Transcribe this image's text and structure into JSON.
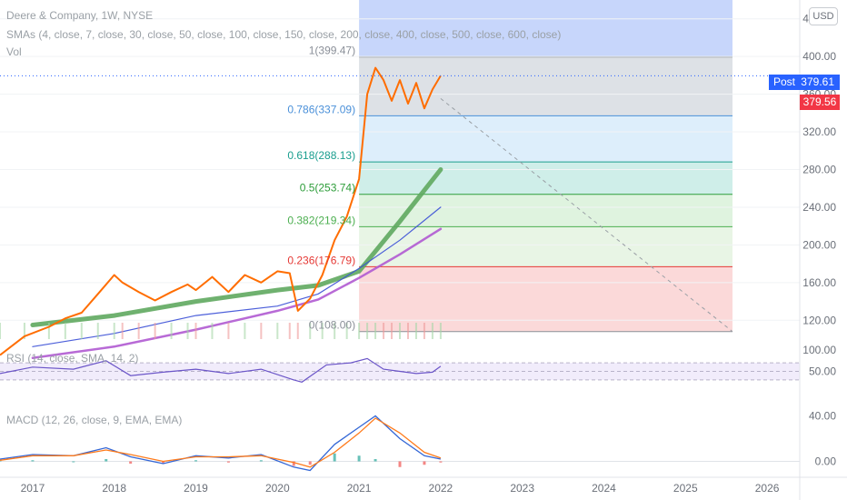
{
  "header": {
    "symbol_title": "Deere & Company, 1W, NYSE",
    "smas_label": "SMAs (4, close, 7, close, 30, close, 50, close, 100, close, 150, close, 200, close, 400, close, 500, close, 600, close)",
    "vol_label": "Vol",
    "currency_button": "USD"
  },
  "price_tags": {
    "post_label": "Post",
    "post_value": "379.61",
    "last_value": "379.56"
  },
  "rsi_label": "RSI (14, close, SMA, 14, 2)",
  "macd_label": "MACD (12, 26, close, 9, EMA, EMA)",
  "colors": {
    "fib_zone_upper": "#dde1e6",
    "fib_zone_0786": "#ddeefb",
    "fib_zone_0618": "#cfeee9",
    "fib_zone_05": "#dff3df",
    "fib_zone_0382": "#e8f5e5",
    "fib_zone_0236": "#fbd9d9",
    "highlight_band": "#c7d6fb",
    "price_line": "#ff6d00",
    "sma_green": "#5fa85f",
    "sma_purple": "#b05ad1",
    "sma_blue": "#3a4fd6",
    "rsi_line": "#6b55c8",
    "rsi_signal": "#e3c240",
    "macd_line": "#3467d6",
    "macd_signal": "#ff7b1c"
  },
  "chart_data": {
    "type": "line",
    "title": "Deere & Company, 1W, NYSE",
    "x_ticks": [
      "2017",
      "2018",
      "2019",
      "2020",
      "2021",
      "2022",
      "2023",
      "2024",
      "2025",
      "2026"
    ],
    "y_ticks": [
      "440.00",
      "400.00",
      "360.00",
      "320.00",
      "280.00",
      "240.00",
      "200.00",
      "160.00",
      "120.00"
    ],
    "ylim": [
      100,
      460
    ],
    "price_series": {
      "x": [
        2016.6,
        2016.9,
        2017.2,
        2017.4,
        2017.6,
        2017.8,
        2018.0,
        2018.1,
        2018.3,
        2018.5,
        2018.7,
        2018.9,
        2019.0,
        2019.2,
        2019.4,
        2019.6,
        2019.8,
        2020.0,
        2020.15,
        2020.25,
        2020.4,
        2020.55,
        2020.7,
        2020.85,
        2021.0,
        2021.1,
        2021.2,
        2021.3,
        2021.4,
        2021.5,
        2021.6,
        2021.7,
        2021.8,
        2021.9,
        2022.0
      ],
      "y": [
        83,
        103,
        113,
        122,
        128,
        148,
        168,
        160,
        150,
        141,
        150,
        158,
        152,
        166,
        150,
        168,
        160,
        172,
        170,
        130,
        143,
        168,
        205,
        230,
        270,
        360,
        388,
        375,
        353,
        375,
        350,
        372,
        345,
        365,
        379.56
      ]
    },
    "fibonacci": {
      "levels": [
        {
          "label": "1(399.47)",
          "ratio": 1,
          "price": 399.47
        },
        {
          "label": "0.786(337.09)",
          "ratio": 0.786,
          "price": 337.09
        },
        {
          "label": "0.618(288.13)",
          "ratio": 0.618,
          "price": 288.13
        },
        {
          "label": "0.5(253.74)",
          "ratio": 0.5,
          "price": 253.74
        },
        {
          "label": "0.382(219.34)",
          "ratio": 0.382,
          "price": 219.34
        },
        {
          "label": "0.236(176.79)",
          "ratio": 0.236,
          "price": 176.79
        },
        {
          "label": "0(108.00)",
          "ratio": 0,
          "price": 108.0
        }
      ],
      "x_start": 2021.0,
      "x_end": 2022.0
    },
    "sma_lines": [
      {
        "x": [
          2017.0,
          2018.0,
          2019.0,
          2020.0,
          2020.5,
          2021.0,
          2021.5,
          2022.0
        ],
        "y": [
          115,
          125,
          140,
          152,
          157,
          172,
          225,
          280
        ]
      },
      {
        "x": [
          2017.0,
          2018.0,
          2019.0,
          2020.0,
          2020.5,
          2021.0,
          2021.5,
          2022.0
        ],
        "y": [
          92,
          106,
          125,
          135,
          148,
          175,
          205,
          240
        ]
      },
      {
        "x": [
          2017.0,
          2018.0,
          2019.0,
          2020.0,
          2020.5,
          2021.0,
          2021.5,
          2022.0
        ],
        "y": [
          80,
          92,
          110,
          130,
          142,
          165,
          190,
          217
        ]
      }
    ],
    "rsi": {
      "y_ticks": [
        "100.00",
        "50.00"
      ],
      "ylim": [
        0,
        100
      ],
      "overbought": 70,
      "oversold": 30,
      "x": [
        2016.6,
        2017.0,
        2017.5,
        2017.9,
        2018.2,
        2018.6,
        2019.0,
        2019.4,
        2019.8,
        2020.2,
        2020.3,
        2020.6,
        2020.9,
        2021.1,
        2021.3,
        2021.5,
        2021.7,
        2021.9,
        2022.0
      ],
      "y": [
        45,
        60,
        55,
        75,
        40,
        48,
        55,
        45,
        55,
        30,
        25,
        65,
        70,
        80,
        55,
        50,
        45,
        48,
        62
      ]
    },
    "macd": {
      "y_ticks": [
        "40.00",
        "0.00"
      ],
      "ylim": [
        -10,
        50
      ],
      "x": [
        2016.6,
        2017.0,
        2017.5,
        2017.9,
        2018.2,
        2018.6,
        2019.0,
        2019.4,
        2019.8,
        2020.2,
        2020.4,
        2020.7,
        2021.0,
        2021.2,
        2021.5,
        2021.8,
        2022.0
      ],
      "macd_line": [
        2,
        6,
        5,
        12,
        4,
        -2,
        5,
        3,
        6,
        -5,
        -8,
        15,
        30,
        40,
        20,
        5,
        2
      ],
      "signal_line": [
        1,
        5,
        5,
        10,
        6,
        0,
        4,
        4,
        5,
        -1,
        -5,
        8,
        25,
        38,
        25,
        8,
        3
      ]
    }
  }
}
